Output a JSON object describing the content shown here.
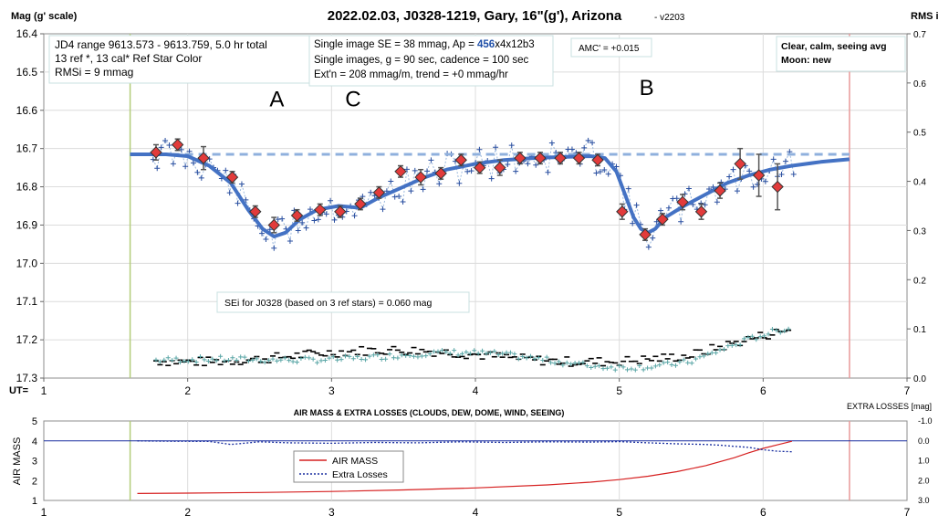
{
  "chart_data": [
    {
      "type": "scatter",
      "title": "2022.02.03, J0328-1219, Gary, 16\"(g'), Arizona",
      "version": "- v2203",
      "ylabel": "Mag (g' scale)",
      "y2label": "RMS i",
      "xlabel": "UT=",
      "xlim": [
        1,
        7
      ],
      "ylim": [
        16.4,
        17.3
      ],
      "y2lim": [
        0.0,
        0.7
      ],
      "x_ticks": [
        "1",
        "2",
        "3",
        "4",
        "5",
        "6",
        "7"
      ],
      "y_ticks": [
        "16.4",
        "16.5",
        "16.6",
        "16.7",
        "16.8",
        "16.9",
        "17.0",
        "17.1",
        "17.2",
        "17.3"
      ],
      "y2_ticks": [
        "0.7",
        "0.6",
        "0.5",
        "0.4",
        "0.3",
        "0.2",
        "0.1",
        "0.0"
      ],
      "grid": true,
      "boxes": {
        "left": [
          "JD4 range 9613.573 - 9613.759, 5.0 hr total",
          "13 ref *, 13 cal*  Ref Star Color",
          "RMSi = 9 mmag"
        ],
        "middle": {
          "line1_prefix": "Single image SE = 38 mmag, Ap = ",
          "line1_highlight": "456",
          "line1_suffix": "x4x12b3",
          "line2": "Single images, g = 90 sec, cadence = 100 sec",
          "line3": "Ext'n = 208 mmag/m, trend = +0 mmag/hr"
        },
        "amc": "AMC' = +0.015",
        "right": [
          "Clear, calm, seeing avg",
          "Moon: new"
        ]
      },
      "sei_label": "SEi for J0328 (based on 3 ref stars) = 0.060 mag",
      "event_labels": [
        {
          "text": "A",
          "x": 2.62,
          "y": 16.59
        },
        {
          "text": "C",
          "x": 3.15,
          "y": 16.59
        },
        {
          "text": "B",
          "x": 5.19,
          "y": 16.56
        }
      ],
      "vlines": [
        {
          "x": 1.6,
          "color": "#b3cc7a"
        },
        {
          "x": 6.6,
          "color": "#e89a9a"
        }
      ],
      "baseline_mag": 16.715,
      "model_curve": [
        [
          1.6,
          16.715
        ],
        [
          1.85,
          16.715
        ],
        [
          2.0,
          16.72
        ],
        [
          2.15,
          16.745
        ],
        [
          2.3,
          16.79
        ],
        [
          2.42,
          16.86
        ],
        [
          2.52,
          16.91
        ],
        [
          2.6,
          16.93
        ],
        [
          2.68,
          16.92
        ],
        [
          2.78,
          16.885
        ],
        [
          2.9,
          16.86
        ],
        [
          3.05,
          16.85
        ],
        [
          3.2,
          16.855
        ],
        [
          3.32,
          16.83
        ],
        [
          3.5,
          16.8
        ],
        [
          3.65,
          16.775
        ],
        [
          3.8,
          16.755
        ],
        [
          4.0,
          16.74
        ],
        [
          4.2,
          16.73
        ],
        [
          4.4,
          16.725
        ],
        [
          4.6,
          16.722
        ],
        [
          4.8,
          16.72
        ],
        [
          4.9,
          16.725
        ],
        [
          4.98,
          16.76
        ],
        [
          5.05,
          16.83
        ],
        [
          5.1,
          16.88
        ],
        [
          5.15,
          16.91
        ],
        [
          5.2,
          16.92
        ],
        [
          5.25,
          16.91
        ],
        [
          5.32,
          16.88
        ],
        [
          5.45,
          16.85
        ],
        [
          5.6,
          16.82
        ],
        [
          5.75,
          16.79
        ],
        [
          5.9,
          16.77
        ],
        [
          6.05,
          16.755
        ],
        [
          6.2,
          16.745
        ],
        [
          6.4,
          16.735
        ],
        [
          6.6,
          16.728
        ]
      ],
      "binned_points": [
        {
          "x": 1.78,
          "y": 16.71,
          "err": 0.02
        },
        {
          "x": 1.93,
          "y": 16.69,
          "err": 0.015
        },
        {
          "x": 2.11,
          "y": 16.725,
          "err": 0.03
        },
        {
          "x": 2.31,
          "y": 16.775,
          "err": 0.015
        },
        {
          "x": 2.47,
          "y": 16.865,
          "err": 0.015
        },
        {
          "x": 2.6,
          "y": 16.9,
          "err": 0.02
        },
        {
          "x": 2.76,
          "y": 16.875,
          "err": 0.015
        },
        {
          "x": 2.92,
          "y": 16.86,
          "err": 0.015
        },
        {
          "x": 3.06,
          "y": 16.865,
          "err": 0.015
        },
        {
          "x": 3.2,
          "y": 16.845,
          "err": 0.015
        },
        {
          "x": 3.33,
          "y": 16.815,
          "err": 0.015
        },
        {
          "x": 3.48,
          "y": 16.76,
          "err": 0.015
        },
        {
          "x": 3.62,
          "y": 16.775,
          "err": 0.02
        },
        {
          "x": 3.76,
          "y": 16.765,
          "err": 0.015
        },
        {
          "x": 3.9,
          "y": 16.73,
          "err": 0.015
        },
        {
          "x": 4.03,
          "y": 16.75,
          "err": 0.015
        },
        {
          "x": 4.17,
          "y": 16.75,
          "err": 0.02
        },
        {
          "x": 4.31,
          "y": 16.725,
          "err": 0.015
        },
        {
          "x": 4.45,
          "y": 16.725,
          "err": 0.015
        },
        {
          "x": 4.59,
          "y": 16.725,
          "err": 0.015
        },
        {
          "x": 4.72,
          "y": 16.725,
          "err": 0.015
        },
        {
          "x": 4.85,
          "y": 16.73,
          "err": 0.015
        },
        {
          "x": 5.02,
          "y": 16.865,
          "err": 0.02
        },
        {
          "x": 5.18,
          "y": 16.925,
          "err": 0.015
        },
        {
          "x": 5.3,
          "y": 16.885,
          "err": 0.015
        },
        {
          "x": 5.44,
          "y": 16.84,
          "err": 0.02
        },
        {
          "x": 5.57,
          "y": 16.865,
          "err": 0.02
        },
        {
          "x": 5.7,
          "y": 16.81,
          "err": 0.02
        },
        {
          "x": 5.84,
          "y": 16.74,
          "err": 0.04
        },
        {
          "x": 5.97,
          "y": 16.77,
          "err": 0.055
        },
        {
          "x": 6.1,
          "y": 16.8,
          "err": 0.06
        }
      ],
      "sei_label_y": 17.09
    },
    {
      "type": "line",
      "title": "AIR MASS & EXTRA LOSSES (CLOUDS, DEW, DOME, WIND, SEEING)",
      "ylabel": "AIR MASS",
      "y2label": "EXTRA LOSSES [mag]",
      "xlim": [
        1,
        7
      ],
      "ylim": [
        1,
        5
      ],
      "y2lim": [
        -1.0,
        3.0
      ],
      "x_ticks": [
        "1",
        "2",
        "3",
        "4",
        "5",
        "6",
        "7"
      ],
      "y_ticks": [
        "5",
        "4",
        "3",
        "2",
        "1"
      ],
      "y2_ticks": [
        "-1.0",
        "0.0",
        "1.0",
        "2.0",
        "3.0"
      ],
      "legend_position": "center-left",
      "series": [
        {
          "name": "AIR MASS",
          "color": "#d62020",
          "x": [
            1.65,
            2.0,
            2.5,
            3.0,
            3.5,
            4.0,
            4.5,
            4.8,
            5.0,
            5.2,
            5.4,
            5.6,
            5.8,
            5.9,
            6.0,
            6.1,
            6.2
          ],
          "y": [
            1.35,
            1.37,
            1.4,
            1.45,
            1.53,
            1.63,
            1.78,
            1.92,
            2.05,
            2.22,
            2.45,
            2.75,
            3.15,
            3.4,
            3.62,
            3.8,
            3.98
          ]
        },
        {
          "name": "Extra Losses",
          "color": "#1a2fa0",
          "x": [
            1.65,
            1.9,
            2.15,
            2.3,
            2.5,
            2.7,
            3.0,
            3.3,
            3.6,
            3.9,
            4.2,
            4.5,
            4.8,
            5.0,
            5.2,
            5.4,
            5.6,
            5.7,
            5.8,
            5.9,
            6.0,
            6.1,
            6.2
          ],
          "y": [
            0.0,
            0.02,
            0.03,
            0.18,
            0.05,
            0.1,
            0.12,
            0.08,
            0.1,
            0.05,
            0.08,
            0.05,
            0.06,
            0.04,
            0.1,
            0.15,
            0.18,
            0.22,
            0.28,
            0.33,
            0.45,
            0.52,
            0.55
          ]
        }
      ],
      "baseline_extra_losses": 0.0,
      "vlines": [
        {
          "x": 1.6,
          "color": "#b3cc7a"
        },
        {
          "x": 6.6,
          "color": "#e89a9a"
        }
      ]
    }
  ]
}
